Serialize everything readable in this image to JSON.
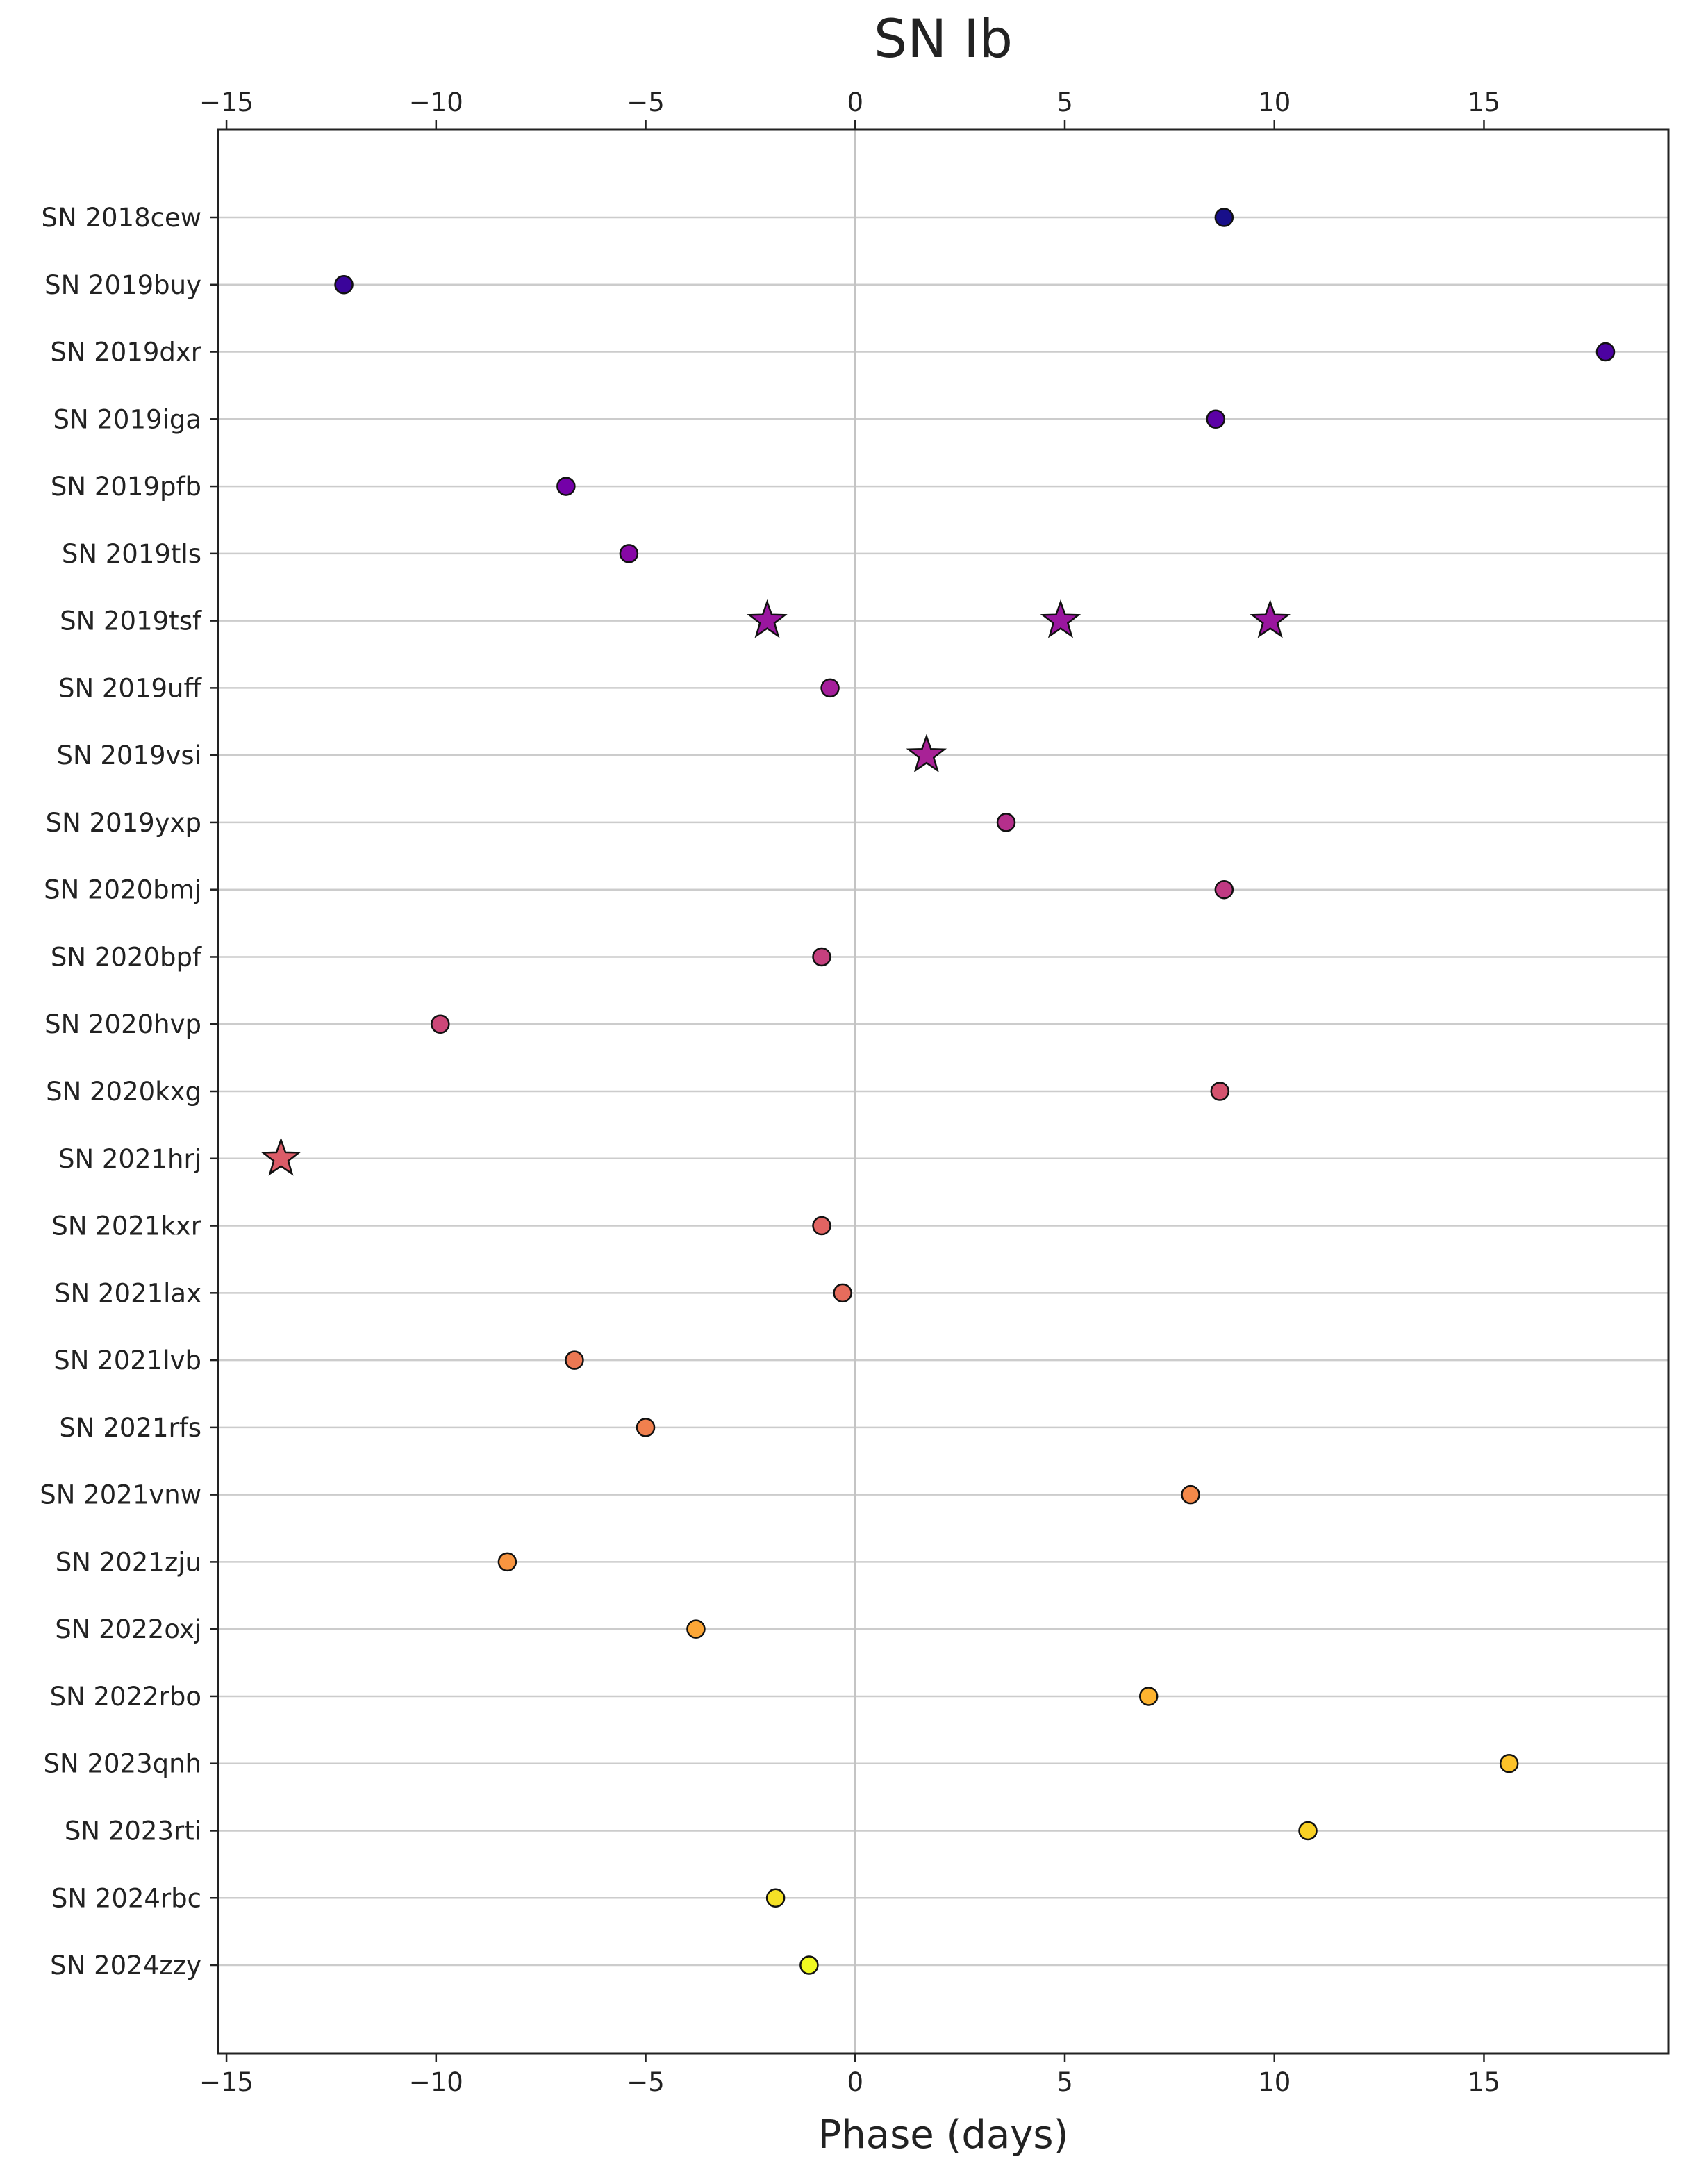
{
  "chart_data": {
    "type": "scatter",
    "title": "SN Ib",
    "xlabel": "Phase (days)",
    "ylabel": "",
    "xlim": [
      -15.2,
      19.4
    ],
    "xticks": [
      -15,
      -10,
      -5,
      0,
      5,
      10,
      15
    ],
    "xtick_labels": [
      "−15",
      "−10",
      "−5",
      "0",
      "5",
      "10",
      "15"
    ],
    "grid": "horizontal lines at each supernova; vertical line at phase 0",
    "colormap": "plasma",
    "categories": [
      "SN 2018cew",
      "SN 2019buy",
      "SN 2019dxr",
      "SN 2019iga",
      "SN 2019pfb",
      "SN 2019tls",
      "SN 2019tsf",
      "SN 2019uff",
      "SN 2019vsi",
      "SN 2019yxp",
      "SN 2020bmj",
      "SN 2020bpf",
      "SN 2020hvp",
      "SN 2020kxg",
      "SN 2021hrj",
      "SN 2021kxr",
      "SN 2021lax",
      "SN 2021lvb",
      "SN 2021rfs",
      "SN 2021vnw",
      "SN 2021zju",
      "SN 2022oxj",
      "SN 2022rbo",
      "SN 2023qnh",
      "SN 2023rti",
      "SN 2024rbc",
      "SN 2024zzy"
    ],
    "points": [
      {
        "sn": "SN 2018cew",
        "phase": 8.8,
        "marker": "circle",
        "color": "#180f8a"
      },
      {
        "sn": "SN 2019buy",
        "phase": -12.2,
        "marker": "circle",
        "color": "#3a049a"
      },
      {
        "sn": "SN 2019dxr",
        "phase": 17.9,
        "marker": "circle",
        "color": "#4c02a1"
      },
      {
        "sn": "SN 2019iga",
        "phase": 8.6,
        "marker": "circle",
        "color": "#5c01a6"
      },
      {
        "sn": "SN 2019pfb",
        "phase": -6.9,
        "marker": "circle",
        "color": "#7401a8"
      },
      {
        "sn": "SN 2019tls",
        "phase": -5.4,
        "marker": "circle",
        "color": "#8707a6"
      },
      {
        "sn": "SN 2019tsf",
        "phase": -2.1,
        "marker": "star",
        "color": "#9a169f"
      },
      {
        "sn": "SN 2019tsf",
        "phase": 4.9,
        "marker": "star",
        "color": "#9a169f"
      },
      {
        "sn": "SN 2019tsf",
        "phase": 9.9,
        "marker": "star",
        "color": "#9a169f"
      },
      {
        "sn": "SN 2019uff",
        "phase": -0.6,
        "marker": "circle",
        "color": "#a51e9b"
      },
      {
        "sn": "SN 2019vsi",
        "phase": 1.7,
        "marker": "star",
        "color": "#a82296"
      },
      {
        "sn": "SN 2019yxp",
        "phase": 3.6,
        "marker": "circle",
        "color": "#b52f8c"
      },
      {
        "sn": "SN 2020bmj",
        "phase": 8.8,
        "marker": "circle",
        "color": "#c03a83"
      },
      {
        "sn": "SN 2020bpf",
        "phase": -0.8,
        "marker": "circle",
        "color": "#c5407e"
      },
      {
        "sn": "SN 2020hvp",
        "phase": -9.9,
        "marker": "circle",
        "color": "#cc4778"
      },
      {
        "sn": "SN 2020kxg",
        "phase": 8.7,
        "marker": "circle",
        "color": "#d5536f"
      },
      {
        "sn": "SN 2021hrj",
        "phase": -13.7,
        "marker": "star",
        "color": "#db5c68"
      },
      {
        "sn": "SN 2021kxr",
        "phase": -0.8,
        "marker": "circle",
        "color": "#e16462"
      },
      {
        "sn": "SN 2021lax",
        "phase": -0.3,
        "marker": "circle",
        "color": "#e66c5c"
      },
      {
        "sn": "SN 2021lvb",
        "phase": -6.7,
        "marker": "circle",
        "color": "#ec7853"
      },
      {
        "sn": "SN 2021rfs",
        "phase": -5.0,
        "marker": "circle",
        "color": "#f0804e"
      },
      {
        "sn": "SN 2021vnw",
        "phase": 8.0,
        "marker": "circle",
        "color": "#f48849"
      },
      {
        "sn": "SN 2021zju",
        "phase": -8.3,
        "marker": "circle",
        "color": "#f89540"
      },
      {
        "sn": "SN 2022oxj",
        "phase": -3.8,
        "marker": "circle",
        "color": "#fca636"
      },
      {
        "sn": "SN 2022rbo",
        "phase": 7.0,
        "marker": "circle",
        "color": "#fdb32f"
      },
      {
        "sn": "SN 2023qnh",
        "phase": 15.6,
        "marker": "circle",
        "color": "#fcc229"
      },
      {
        "sn": "SN 2023rti",
        "phase": 10.8,
        "marker": "circle",
        "color": "#f9d125"
      },
      {
        "sn": "SN 2024rbc",
        "phase": -1.9,
        "marker": "circle",
        "color": "#f5e126"
      },
      {
        "sn": "SN 2024zzy",
        "phase": -1.1,
        "marker": "circle",
        "color": "#f0f921"
      }
    ]
  }
}
